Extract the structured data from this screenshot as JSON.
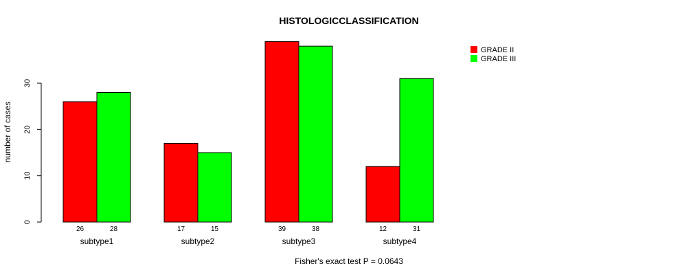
{
  "chart_data": {
    "type": "bar",
    "title": "HISTOLOGICCLASSIFICATION",
    "xlabel": "",
    "ylabel": "number of cases",
    "ylim": [
      0,
      40
    ],
    "yticks": [
      0,
      10,
      20,
      30
    ],
    "categories": [
      "subtype1",
      "subtype2",
      "subtype3",
      "subtype4"
    ],
    "series": [
      {
        "name": "GRADE II",
        "color": "#ff0000",
        "values": [
          26,
          17,
          39,
          12
        ]
      },
      {
        "name": "GRADE III",
        "color": "#00ff00",
        "values": [
          28,
          15,
          38,
          31
        ]
      }
    ],
    "legend_position": "top-right",
    "footnote": "Fisher's exact test P = 0.0643",
    "grid": false
  }
}
